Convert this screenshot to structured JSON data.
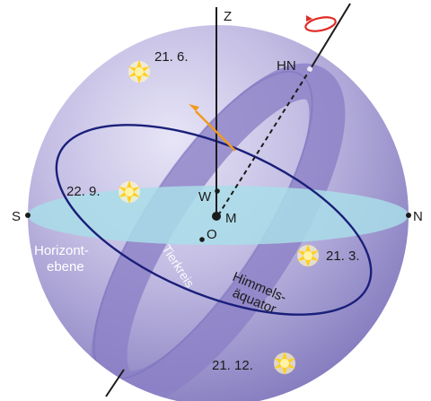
{
  "labels": {
    "zenith": "Z",
    "celestial_north_pole": "HN",
    "south": "S",
    "north": "N",
    "west": "W",
    "east": "O",
    "center": "M",
    "horizon_line1": "Horizont-",
    "horizon_line2": "ebene",
    "ecliptic": "Tierkreis",
    "equator_line1": "Himmels-",
    "equator_line2": "äquator"
  },
  "sun_positions": [
    {
      "date": "21. 6."
    },
    {
      "date": "22. 9."
    },
    {
      "date": "21. 3."
    },
    {
      "date": "21. 12."
    }
  ],
  "colors": {
    "sphere_light": "#d6d2ee",
    "sphere_mid": "#a49bd0",
    "sphere_dark": "#6e64ad",
    "horizon_plane": "#a9dde9",
    "ecliptic_band": "#8b80c6",
    "equator_line": "#1a1f7a",
    "motion_arrow": "#f29a1e",
    "rotation_arrow": "#e02a24",
    "sun": "#ffcf1a"
  }
}
